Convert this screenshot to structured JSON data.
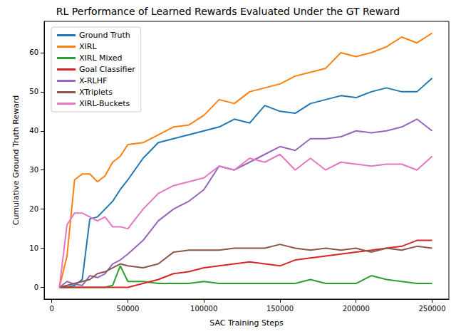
{
  "chart_data": {
    "type": "line",
    "title": "RL Performance of Learned Rewards Evaluated Under the GT Reward",
    "x_label": "SAC Training Steps",
    "y_label": "Cumulative Ground Truth Reward",
    "x": [
      5000,
      10000,
      15000,
      20000,
      25000,
      30000,
      35000,
      40000,
      45000,
      50000,
      60000,
      70000,
      80000,
      90000,
      100000,
      110000,
      120000,
      130000,
      140000,
      150000,
      160000,
      170000,
      180000,
      190000,
      200000,
      210000,
      220000,
      230000,
      240000,
      250000
    ],
    "xlim": [
      -5000,
      261000
    ],
    "xticks": [
      0,
      50000,
      100000,
      150000,
      200000,
      250000
    ],
    "ylim": [
      -3,
      68
    ],
    "yticks": [
      0,
      10,
      20,
      30,
      40,
      50,
      60
    ],
    "grid": false,
    "legend": "upper left",
    "series": [
      {
        "name": "Ground Truth",
        "color": "#1f77b4",
        "values": [
          0,
          0,
          0.5,
          2,
          17.5,
          18,
          20,
          22,
          25,
          27.5,
          33,
          37,
          38,
          39,
          40,
          41,
          43,
          42,
          46.5,
          45,
          44.5,
          47,
          48,
          49,
          48.5,
          50,
          51,
          50,
          50,
          53.5
        ]
      },
      {
        "name": "XIRL",
        "color": "#ff7f0e",
        "values": [
          0,
          8,
          27.5,
          29,
          29,
          27,
          28.5,
          32,
          33.5,
          36.5,
          37,
          39,
          41,
          41.5,
          44,
          48,
          47,
          50,
          51,
          52,
          54,
          55,
          56,
          60,
          59,
          60,
          61.5,
          64,
          62.5,
          65
        ]
      },
      {
        "name": "XIRL Mixed",
        "color": "#2ca02c",
        "values": [
          0,
          0,
          0,
          0,
          0,
          0,
          0,
          0.5,
          5.5,
          1.5,
          1.5,
          1,
          1,
          1,
          1.5,
          1,
          1,
          1,
          1,
          1,
          1,
          2,
          1,
          1,
          1,
          3,
          2,
          1.5,
          1,
          1
        ]
      },
      {
        "name": "Goal Classifier",
        "color": "#d62728",
        "values": [
          0,
          0,
          0,
          0,
          0,
          0,
          0,
          0,
          0,
          0,
          1,
          2,
          3.5,
          4,
          5,
          5.5,
          6,
          6.5,
          6,
          5.5,
          7,
          7.5,
          8,
          8.5,
          9,
          9.5,
          10,
          10.5,
          12,
          12
        ]
      },
      {
        "name": "X-RLHF",
        "color": "#9467bd",
        "values": [
          0,
          1.5,
          0.8,
          0.5,
          3,
          2.5,
          3.5,
          6,
          7,
          8.5,
          12,
          17,
          20,
          22,
          25,
          31,
          30,
          32,
          34,
          36,
          35,
          38,
          38,
          38.5,
          40,
          39.5,
          40,
          41,
          43,
          40
        ]
      },
      {
        "name": "XTriplets",
        "color": "#8c564b",
        "values": [
          0,
          0.5,
          1,
          1.5,
          2,
          3.5,
          4,
          5,
          6,
          5.5,
          5,
          6,
          9,
          9.5,
          9.5,
          9.5,
          10,
          10,
          10,
          11,
          10,
          9.5,
          10,
          9.5,
          10,
          9,
          10,
          9.5,
          10.5,
          10
        ]
      },
      {
        "name": "XIRL-Buckets",
        "color": "#e377c2",
        "values": [
          0,
          16,
          19,
          19,
          18,
          17,
          18,
          15.5,
          15.5,
          15,
          20,
          24,
          26,
          27,
          28,
          31,
          30,
          33,
          32,
          34,
          30,
          33,
          30,
          32,
          31.5,
          31,
          31.5,
          31.5,
          30,
          33.5
        ]
      }
    ]
  }
}
